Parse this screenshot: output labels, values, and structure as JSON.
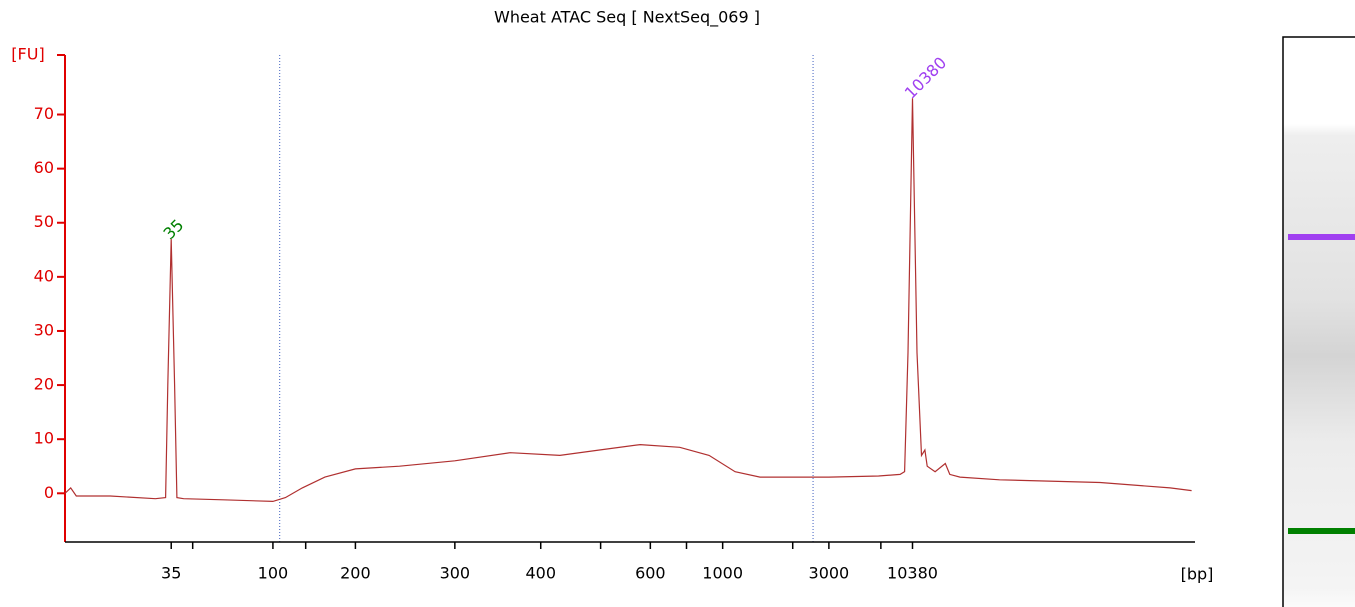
{
  "chart_data": {
    "type": "line",
    "title": "Wheat ATAC Seq  [ NextSeq_069 ]",
    "x_label": "[bp]",
    "y_label": "[FU]",
    "color": "#b03030",
    "axis_color": "#e00000",
    "xlim": [
      0,
      100
    ],
    "ylim": [
      -9,
      81
    ],
    "yticks": [
      0,
      10,
      20,
      30,
      40,
      50,
      60,
      70
    ],
    "xticks": [
      {
        "value": 9.4,
        "label": "35"
      },
      {
        "value": 11.3,
        "label": null
      },
      {
        "value": 18.4,
        "label": "100"
      },
      {
        "value": 21.3,
        "label": null
      },
      {
        "value": 25.7,
        "label": "200"
      },
      {
        "value": 34.5,
        "label": "300"
      },
      {
        "value": 42.1,
        "label": "400"
      },
      {
        "value": 47.4,
        "label": null
      },
      {
        "value": 51.8,
        "label": "600"
      },
      {
        "value": 55.0,
        "label": null
      },
      {
        "value": 58.2,
        "label": "1000"
      },
      {
        "value": 64.4,
        "label": null
      },
      {
        "value": 67.6,
        "label": "3000"
      },
      {
        "value": 72.2,
        "label": null
      },
      {
        "value": 75.0,
        "label": "10380"
      }
    ],
    "vlines": [
      19.0,
      66.2
    ],
    "x": [
      0,
      0.5,
      1,
      4,
      8,
      8.9,
      9.1,
      9.4,
      9.7,
      9.9,
      10.5,
      14,
      18.4,
      19.5,
      21,
      23,
      25.7,
      29.6,
      34.5,
      39.4,
      43.8,
      47.3,
      50.9,
      54.4,
      57,
      59.3,
      61.5,
      67.6,
      72,
      73.9,
      74.3,
      74.6,
      75.0,
      75.4,
      75.8,
      76.1,
      76.3,
      77.0,
      77.9,
      78.3,
      79.2,
      82.7,
      91.6,
      97.8,
      99.7
    ],
    "values": [
      0,
      1,
      -0.5,
      -0.5,
      -1,
      -0.8,
      20,
      47,
      20,
      -0.8,
      -1,
      -1.2,
      -1.5,
      -0.8,
      1,
      3,
      4.5,
      5,
      6,
      7.5,
      7,
      8,
      9,
      8.5,
      7,
      4,
      3,
      3,
      3.2,
      3.5,
      4,
      26,
      73,
      26,
      7,
      8,
      5,
      4,
      5.5,
      3.5,
      3,
      2.5,
      2,
      1,
      0.5
    ],
    "annotations": [
      {
        "text": "35",
        "x": 9.4,
        "y": 47,
        "color": "#008000"
      },
      {
        "text": "10380",
        "x": 75.0,
        "y": 73,
        "color": "#a040f0"
      }
    ]
  }
}
